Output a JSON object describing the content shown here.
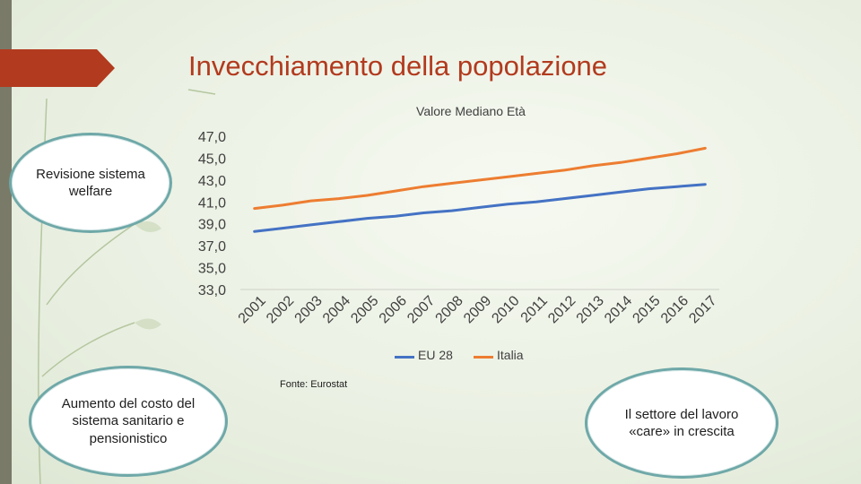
{
  "slide": {
    "title": "Invecchiamento della popolazione",
    "source": "Fonte: Eurostat"
  },
  "bubbles": {
    "top_left": "Revisione sistema welfare",
    "bottom_left": "Aumento del costo del sistema sanitario e pensionistico",
    "bottom_right": "Il settore del lavoro «care» in crescita"
  },
  "colors": {
    "title": "#b23a1e",
    "eu28": "#4472c4",
    "italia": "#ed7d31",
    "bubble_border": "#6fa8a8"
  },
  "chart_data": {
    "type": "line",
    "title": "Valore Mediano Età",
    "xlabel": "",
    "ylabel": "",
    "ylim": [
      33,
      47
    ],
    "y_ticks": [
      "47,0",
      "45,0",
      "43,0",
      "41,0",
      "39,0",
      "37,0",
      "35,0",
      "33,0"
    ],
    "categories": [
      "2001",
      "2002",
      "2003",
      "2004",
      "2005",
      "2006",
      "2007",
      "2008",
      "2009",
      "2010",
      "2011",
      "2012",
      "2013",
      "2014",
      "2015",
      "2016",
      "2017"
    ],
    "legend_position": "bottom",
    "grid": false,
    "series": [
      {
        "name": "EU 28",
        "color": "#4472c4",
        "values": [
          38.3,
          38.6,
          38.9,
          39.2,
          39.5,
          39.7,
          40.0,
          40.2,
          40.5,
          40.8,
          41.0,
          41.3,
          41.6,
          41.9,
          42.2,
          42.4,
          42.6
        ]
      },
      {
        "name": "Italia",
        "color": "#ed7d31",
        "values": [
          40.4,
          40.7,
          41.1,
          41.3,
          41.6,
          42.0,
          42.4,
          42.7,
          43.0,
          43.3,
          43.6,
          43.9,
          44.3,
          44.6,
          45.0,
          45.4,
          45.9
        ]
      }
    ]
  }
}
